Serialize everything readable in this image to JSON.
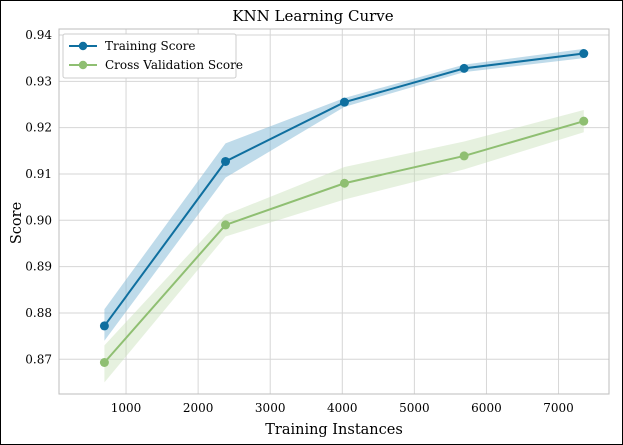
{
  "chart_data": {
    "type": "line",
    "title": "KNN Learning Curve",
    "xlabel": "Training Instances",
    "ylabel": "Score",
    "xlim": [
      70,
      7700
    ],
    "ylim": [
      0.8625,
      0.9413
    ],
    "xticks": [
      1000,
      2000,
      3000,
      4000,
      5000,
      6000,
      7000
    ],
    "yticks": [
      0.87,
      0.88,
      0.89,
      0.9,
      0.91,
      0.92,
      0.93,
      0.94
    ],
    "ytick_labels": [
      "0.87",
      "0.88",
      "0.89",
      "0.90",
      "0.91",
      "0.92",
      "0.93",
      "0.94"
    ],
    "grid": true,
    "legend_position": "top-left",
    "x": [
      700,
      2380,
      4030,
      5690,
      7350
    ],
    "series": [
      {
        "name": "Training Score",
        "color": "#0f6f9f",
        "band_color": "#7fb8d6",
        "values": [
          0.8772,
          0.9127,
          0.9255,
          0.9328,
          0.936
        ],
        "band_low": [
          0.874,
          0.9092,
          0.9245,
          0.932,
          0.935
        ],
        "band_high": [
          0.8808,
          0.9166,
          0.9264,
          0.9336,
          0.937
        ]
      },
      {
        "name": "Cross Validation Score",
        "color": "#8fbf72",
        "band_color": "#c8e0b8",
        "values": [
          0.8693,
          0.899,
          0.908,
          0.9139,
          0.9214
        ],
        "band_low": [
          0.865,
          0.8965,
          0.9045,
          0.911,
          0.919
        ],
        "band_high": [
          0.873,
          0.9012,
          0.9115,
          0.917,
          0.9238
        ]
      }
    ]
  }
}
